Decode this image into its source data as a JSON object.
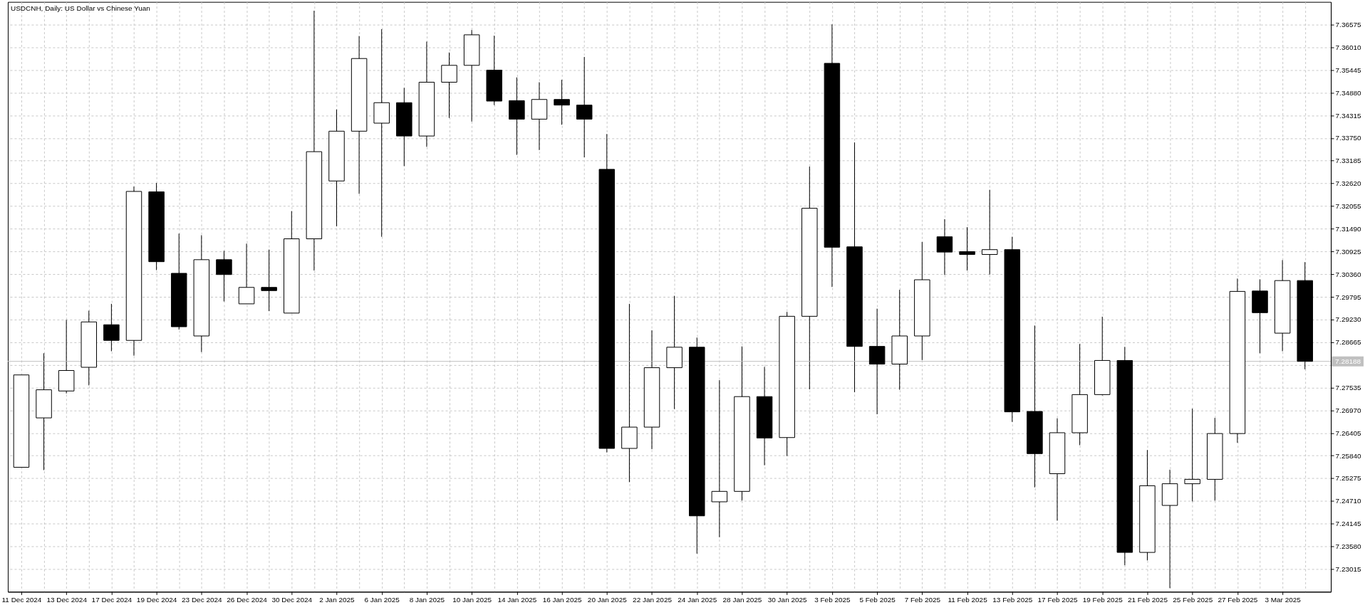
{
  "chart_data": {
    "type": "candlestick",
    "title": "USDCNH, Daily:  US Dollar vs Chinese Yuan",
    "categories": [
      "11 Dec 2024",
      null,
      "13 Dec 2024",
      null,
      "17 Dec 2024",
      null,
      "19 Dec 2024",
      null,
      "23 Dec 2024",
      null,
      "26 Dec 2024",
      null,
      "30 Dec 2024",
      null,
      "2 Jan 2025",
      null,
      "6 Jan 2025",
      null,
      "8 Jan 2025",
      null,
      "10 Jan 2025",
      null,
      "14 Jan 2025",
      null,
      "16 Jan 2025",
      null,
      "20 Jan 2025",
      null,
      "22 Jan 2025",
      null,
      "24 Jan 2025",
      null,
      "28 Jan 2025",
      null,
      "30 Jan 2025",
      null,
      "3 Feb 2025",
      null,
      "5 Feb 2025",
      null,
      "7 Feb 2025",
      null,
      "11 Feb 2025",
      null,
      "13 Feb 2025",
      null,
      "17 Feb 2025",
      null,
      "19 Feb 2025",
      null,
      "21 Feb 2025",
      null,
      "25 Feb 2025",
      null,
      "27 Feb 2025",
      null,
      "3 Mar 2025",
      null
    ],
    "ohlc": [
      [
        7.2555,
        7.2785,
        7.2555,
        7.2785
      ],
      [
        7.2678,
        7.2839,
        7.2548,
        7.2748
      ],
      [
        7.2745,
        7.2922,
        7.2739,
        7.2796
      ],
      [
        7.2804,
        7.2945,
        7.2759,
        7.2917
      ],
      [
        7.291,
        7.2962,
        7.2844,
        7.2871
      ],
      [
        7.2871,
        7.3254,
        7.2833,
        7.3242
      ],
      [
        7.3241,
        7.3263,
        7.3046,
        7.3067
      ],
      [
        7.3038,
        7.3137,
        7.2898,
        7.2905
      ],
      [
        7.2882,
        7.3133,
        7.2842,
        7.3072
      ],
      [
        7.3072,
        7.3094,
        7.2968,
        7.3035
      ],
      [
        7.2962,
        7.3112,
        7.2962,
        7.3003
      ],
      [
        7.3003,
        7.3097,
        7.2944,
        7.2995
      ],
      [
        7.2939,
        7.3193,
        7.2939,
        7.3124
      ],
      [
        7.3124,
        7.3692,
        7.3045,
        7.3341
      ],
      [
        7.3268,
        7.3446,
        7.3155,
        7.3392
      ],
      [
        7.3392,
        7.3629,
        7.3236,
        7.3573
      ],
      [
        7.3412,
        7.3646,
        7.3129,
        7.3463
      ],
      [
        7.3463,
        7.35,
        7.3305,
        7.338
      ],
      [
        7.338,
        7.3615,
        7.3353,
        7.3514
      ],
      [
        7.3514,
        7.3588,
        7.3425,
        7.3556
      ],
      [
        7.3556,
        7.3644,
        7.3416,
        7.3632
      ],
      [
        7.3544,
        7.363,
        7.3457,
        7.3467
      ],
      [
        7.3468,
        7.3526,
        7.3333,
        7.3422
      ],
      [
        7.3422,
        7.3514,
        7.3345,
        7.3471
      ],
      [
        7.3471,
        7.352,
        7.3408,
        7.3457
      ],
      [
        7.3457,
        7.3577,
        7.3327,
        7.3422
      ],
      [
        7.3297,
        7.3385,
        7.2592,
        7.2602
      ],
      [
        7.2602,
        7.2962,
        7.2518,
        7.2655
      ],
      [
        7.2655,
        7.2896,
        7.26,
        7.2803
      ],
      [
        7.2803,
        7.2982,
        7.27,
        7.2854
      ],
      [
        7.2854,
        7.2878,
        7.234,
        7.2434
      ],
      [
        7.2469,
        7.2772,
        7.2381,
        7.2495
      ],
      [
        7.2495,
        7.2856,
        7.2472,
        7.2731
      ],
      [
        7.2731,
        7.2805,
        7.256,
        7.2628
      ],
      [
        7.2629,
        7.2942,
        7.2583,
        7.2931
      ],
      [
        7.2931,
        7.3304,
        7.2749,
        7.32
      ],
      [
        7.3561,
        7.3658,
        7.3004,
        7.3103
      ],
      [
        7.3104,
        7.3364,
        7.2742,
        7.2856
      ],
      [
        7.2856,
        7.295,
        7.2687,
        7.2812
      ],
      [
        7.2812,
        7.2997,
        7.2748,
        7.2882
      ],
      [
        7.2882,
        7.3116,
        7.2822,
        7.3022
      ],
      [
        7.3129,
        7.3173,
        7.3034,
        7.3091
      ],
      [
        7.3092,
        7.3153,
        7.3045,
        7.3085
      ],
      [
        7.3085,
        7.3246,
        7.3035,
        7.3097
      ],
      [
        7.3097,
        7.3129,
        7.2668,
        7.2693
      ],
      [
        7.2694,
        7.2908,
        7.2505,
        7.2589
      ],
      [
        7.2539,
        7.2677,
        7.2422,
        7.2641
      ],
      [
        7.2641,
        7.2862,
        7.261,
        7.2736
      ],
      [
        7.2736,
        7.293,
        7.2734,
        7.2821
      ],
      [
        7.2821,
        7.2855,
        7.2311,
        7.2343
      ],
      [
        7.2343,
        7.2598,
        7.2323,
        7.2509
      ],
      [
        7.246,
        7.2549,
        7.2254,
        7.2514
      ],
      [
        7.2514,
        7.2701,
        7.247,
        7.2525
      ],
      [
        7.2525,
        7.2678,
        7.2472,
        7.2639
      ],
      [
        7.2639,
        7.3025,
        7.2616,
        7.2993
      ],
      [
        7.2994,
        7.3023,
        7.2839,
        7.294
      ],
      [
        7.2889,
        7.3071,
        7.2844,
        7.302
      ],
      [
        7.302,
        7.3066,
        7.2799,
        7.28188
      ]
    ],
    "colors": [
      "#ffffff",
      "#ffffff",
      "#ffffff",
      "#ffffff",
      "#000000",
      "#ffffff",
      "#000000",
      "#000000",
      "#ffffff",
      "#000000",
      "#ffffff",
      "#000000",
      "#ffffff",
      "#ffffff",
      "#ffffff",
      "#ffffff",
      "#ffffff",
      "#000000",
      "#ffffff",
      "#ffffff",
      "#ffffff",
      "#000000",
      "#000000",
      "#ffffff",
      "#000000",
      "#000000",
      "#000000",
      "#ffffff",
      "#ffffff",
      "#ffffff",
      "#000000",
      "#ffffff",
      "#ffffff",
      "#000000",
      "#ffffff",
      "#ffffff",
      "#000000",
      "#000000",
      "#000000",
      "#ffffff",
      "#ffffff",
      "#000000",
      "#000000",
      "#ffffff",
      "#000000",
      "#000000",
      "#ffffff",
      "#ffffff",
      "#ffffff",
      "#000000",
      "#ffffff",
      "#ffffff",
      "#ffffff",
      "#ffffff",
      "#ffffff",
      "#000000",
      "#ffffff",
      "#000000"
    ],
    "color": "#000000",
    "ylim": [
      7.2245,
      7.3714
    ],
    "yticks": [
      7.36575,
      {
        "value": 7.3601,
        "label": "7.36010"
      },
      7.35445,
      {
        "value": 7.3488,
        "label": "7.34880"
      },
      7.34315,
      {
        "value": 7.3375,
        "label": "7.33750"
      },
      7.33185,
      {
        "value": 7.3262,
        "label": "7.32620"
      },
      7.32055,
      {
        "value": 7.3149,
        "label": "7.31490"
      },
      7.30925,
      {
        "value": 7.3036,
        "label": "7.30360"
      },
      7.29795,
      {
        "value": 7.2923,
        "label": "7.29230"
      },
      7.28665,
      {
        "value": 7.281,
        "label": null
      },
      7.27535,
      {
        "value": 7.2697,
        "label": "7.26970"
      },
      7.26405,
      {
        "value": 7.2584,
        "label": "7.25840"
      },
      7.25275,
      {
        "value": 7.2471,
        "label": "7.24710"
      },
      7.24145,
      {
        "value": 7.2358,
        "label": "7.23580"
      },
      7.23015
    ],
    "grid": true,
    "ref_lines": [
      {
        "axis": "y",
        "value": 7.28188,
        "label": "7.28188",
        "color": "#c0c0c0"
      }
    ]
  }
}
